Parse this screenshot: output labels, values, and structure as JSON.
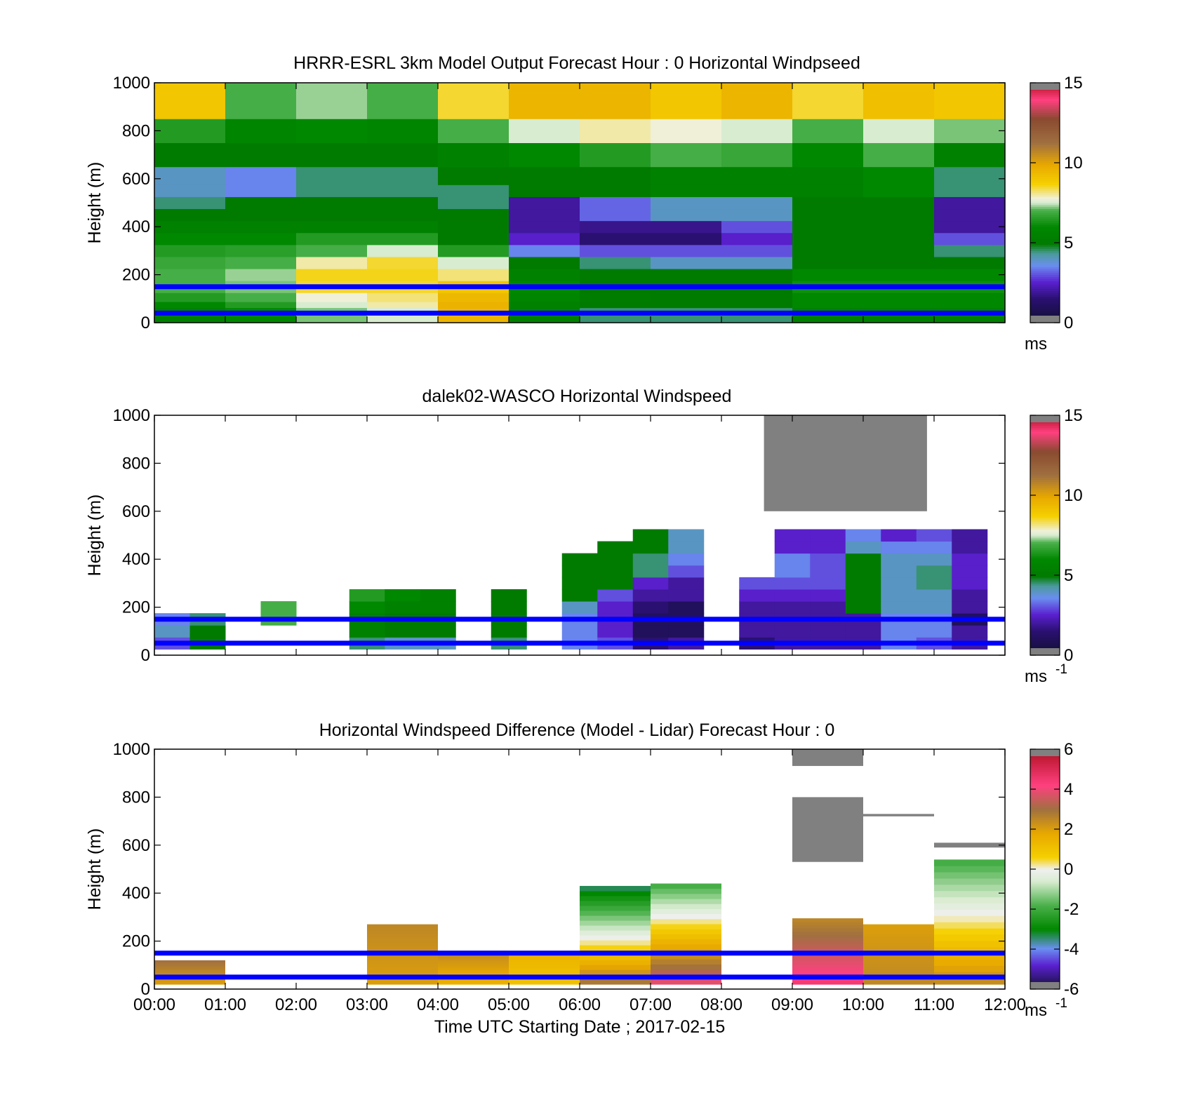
{
  "charts": [
    {
      "type": "heatmap",
      "title": "HRRR-ESRL 3km Model Output   Forecast Hour : 0 Horizontal Windpseed",
      "ylabel": "Height (m)",
      "xlabel": "",
      "yticks": [
        "0",
        "200",
        "400",
        "600",
        "800",
        "1000"
      ],
      "xticks": [],
      "ylim": [
        0,
        1000
      ],
      "xlim_hours": [
        0,
        12
      ],
      "colorbar": {
        "unit": "ms",
        "unit_exp": "",
        "ticks": [
          "0",
          "5",
          "10",
          "15"
        ],
        "min": 0,
        "max": 15
      }
    },
    {
      "type": "heatmap",
      "title": "dalek02-WASCO  Horizontal Windspeed",
      "ylabel": "Height (m)",
      "xlabel": "",
      "yticks": [
        "0",
        "200",
        "400",
        "600",
        "800",
        "1000"
      ],
      "xticks": [],
      "ylim": [
        0,
        1000
      ],
      "xlim_hours": [
        0,
        12
      ],
      "colorbar": {
        "unit": "ms",
        "unit_exp": "-1",
        "ticks": [
          "0",
          "5",
          "10",
          "15"
        ],
        "min": 0,
        "max": 15
      }
    },
    {
      "type": "heatmap",
      "title": "Horizontal Windspeed Difference (Model - Lidar) Forecast Hour : 0",
      "ylabel": "Height (m)",
      "xlabel": "Time UTC  Starting Date ; 2017-02-15",
      "yticks": [
        "0",
        "200",
        "400",
        "600",
        "800",
        "1000"
      ],
      "xticks": [
        "00:00",
        "01:00",
        "02:00",
        "03:00",
        "04:00",
        "05:00",
        "06:00",
        "07:00",
        "08:00",
        "09:00",
        "10:00",
        "11:00",
        "12:00"
      ],
      "ylim": [
        0,
        1000
      ],
      "xlim_hours": [
        0,
        12
      ],
      "colorbar": {
        "unit": "ms",
        "unit_exp": "-1",
        "ticks": [
          "-6",
          "-4",
          "-2",
          "0",
          "2",
          "4",
          "6"
        ],
        "min": -6,
        "max": 6
      }
    }
  ],
  "chart_data": [
    {
      "type": "heatmap",
      "x_hours": [
        0,
        1,
        2,
        3,
        4,
        5,
        6,
        7,
        8,
        9,
        10,
        11
      ],
      "y_height_m": [
        50,
        75,
        100,
        150,
        200,
        250,
        300,
        350,
        400,
        450,
        500,
        550,
        600,
        700,
        800,
        900
      ],
      "z_ms": [
        [
          5.5,
          6.0,
          7.2,
          7.5,
          9.5,
          5.5,
          4.5,
          4.5,
          4.5,
          5.5,
          5.5,
          5.5
        ],
        [
          6.0,
          6.5,
          7.5,
          8.0,
          9.6,
          5.5,
          5.0,
          5.0,
          5.0,
          6.0,
          6.0,
          6.0
        ],
        [
          6.5,
          7.0,
          7.8,
          8.2,
          9.4,
          5.8,
          5.2,
          5.0,
          5.0,
          6.0,
          6.0,
          6.0
        ],
        [
          7.0,
          7.2,
          8.5,
          8.5,
          9.0,
          6.0,
          5.0,
          5.0,
          5.0,
          6.2,
          6.2,
          6.2
        ],
        [
          7.0,
          7.3,
          8.6,
          8.6,
          8.2,
          5.5,
          5.0,
          5.0,
          5.0,
          6.0,
          6.0,
          6.0
        ],
        [
          6.8,
          7.0,
          8.0,
          8.5,
          7.5,
          5.0,
          4.5,
          4.0,
          4.0,
          5.0,
          5.0,
          5.0
        ],
        [
          6.5,
          6.6,
          7.0,
          7.5,
          6.5,
          3.5,
          3.0,
          3.0,
          3.0,
          5.0,
          5.0,
          4.5
        ],
        [
          6.0,
          6.0,
          6.5,
          6.5,
          5.0,
          2.5,
          1.5,
          1.5,
          2.5,
          5.0,
          5.0,
          3.0
        ],
        [
          5.5,
          5.5,
          5.5,
          5.5,
          5.0,
          2.0,
          1.8,
          1.8,
          3.0,
          5.0,
          5.0,
          2.0
        ],
        [
          5.0,
          5.0,
          5.0,
          5.0,
          5.0,
          2.0,
          3.2,
          4.0,
          4.0,
          5.0,
          5.0,
          2.0
        ],
        [
          4.5,
          5.0,
          5.0,
          5.0,
          4.5,
          2.0,
          3.2,
          4.0,
          4.0,
          5.0,
          5.0,
          2.0
        ],
        [
          4.0,
          3.5,
          4.5,
          4.5,
          4.5,
          5.0,
          5.0,
          5.5,
          5.5,
          5.5,
          6.0,
          4.5
        ],
        [
          4.0,
          3.5,
          4.5,
          4.5,
          5.0,
          5.0,
          5.0,
          5.5,
          5.5,
          5.5,
          6.0,
          4.5
        ],
        [
          5.0,
          5.0,
          5.0,
          5.0,
          5.5,
          6.0,
          6.5,
          7.0,
          6.8,
          6.0,
          7.0,
          5.5
        ],
        [
          6.5,
          5.8,
          6.0,
          5.8,
          7.0,
          7.5,
          8.0,
          7.8,
          7.5,
          7.0,
          7.5,
          7.2
        ],
        [
          9.0,
          7.0,
          7.3,
          7.0,
          8.5,
          9.5,
          9.5,
          9.0,
          9.5,
          8.5,
          9.2,
          9.0
        ]
      ],
      "overlay_lines_height_m": [
        40,
        150
      ]
    },
    {
      "type": "heatmap",
      "x_hours": [
        0.25,
        0.75,
        1.75,
        3.0,
        3.5,
        4.0,
        5.0,
        6.0,
        6.5,
        7.0,
        7.5,
        8.5,
        9.0,
        9.5,
        10.0,
        10.5,
        11.0,
        11.5
      ],
      "y_height_m": [
        50,
        100,
        150,
        200,
        250,
        300,
        350,
        400,
        450,
        500
      ],
      "z_ms": [
        [
          3.0,
          5.0,
          null,
          4.5,
          4.0,
          4.0,
          4.5,
          3.5,
          3.0,
          1.5,
          2.0,
          1.5,
          2.0,
          2.0,
          2.0,
          3.5,
          3.0,
          2.0
        ],
        [
          4.0,
          5.0,
          null,
          5.5,
          5.0,
          5.0,
          5.0,
          3.5,
          2.5,
          1.0,
          1.0,
          2.0,
          2.0,
          2.0,
          2.0,
          3.5,
          3.5,
          2.0
        ],
        [
          3.5,
          4.5,
          7.0,
          5.5,
          5.0,
          5.0,
          5.0,
          3.5,
          2.5,
          1.0,
          1.0,
          2.0,
          2.0,
          2.0,
          2.0,
          3.5,
          3.5,
          1.0
        ],
        [
          null,
          null,
          7.0,
          6.0,
          5.5,
          5.5,
          5.0,
          4.0,
          2.5,
          1.5,
          1.0,
          2.0,
          2.0,
          2.0,
          5.0,
          4.0,
          4.0,
          2.0
        ],
        [
          null,
          null,
          null,
          6.5,
          6.0,
          5.5,
          5.0,
          5.0,
          3.0,
          2.0,
          2.0,
          2.5,
          2.5,
          2.5,
          5.0,
          4.0,
          4.0,
          2.0
        ],
        [
          null,
          null,
          null,
          null,
          null,
          null,
          null,
          5.0,
          5.0,
          2.5,
          2.0,
          3.0,
          3.0,
          3.0,
          5.0,
          4.0,
          4.5,
          2.5
        ],
        [
          null,
          null,
          null,
          null,
          null,
          null,
          null,
          5.0,
          5.0,
          4.5,
          3.0,
          null,
          3.5,
          3.0,
          5.0,
          4.0,
          4.5,
          2.5
        ],
        [
          null,
          null,
          null,
          null,
          null,
          null,
          null,
          5.0,
          5.0,
          4.5,
          3.5,
          null,
          3.5,
          3.0,
          5.0,
          4.0,
          4.0,
          2.5
        ],
        [
          null,
          null,
          null,
          null,
          null,
          null,
          null,
          null,
          5.0,
          5.0,
          4.0,
          null,
          2.5,
          2.5,
          4.0,
          3.5,
          3.5,
          2.0
        ],
        [
          null,
          null,
          null,
          null,
          null,
          null,
          null,
          null,
          null,
          5.0,
          4.0,
          null,
          2.5,
          2.5,
          3.5,
          2.5,
          3.0,
          2.0
        ]
      ],
      "missing_data_above_m": [
        500,
        1000
      ],
      "overlay_lines_height_m": [
        50,
        150
      ]
    },
    {
      "type": "heatmap",
      "x_hours": [
        0,
        3,
        4,
        5,
        6,
        7,
        9,
        10,
        11
      ],
      "segments": [
        {
          "x_hours": [
            0,
            1
          ],
          "y_height_m": [
            20,
            120
          ],
          "z_ms": [
            2.0,
            3.0
          ]
        },
        {
          "x_hours": [
            3,
            4
          ],
          "y_height_m": [
            20,
            270
          ],
          "z_ms": [
            2.0,
            2.5
          ]
        },
        {
          "x_hours": [
            4,
            5
          ],
          "y_height_m": [
            20,
            160
          ],
          "z_ms": [
            1.5,
            2.5
          ]
        },
        {
          "x_hours": [
            5,
            6
          ],
          "y_height_m": [
            20,
            160
          ],
          "z_ms": [
            1.0,
            1.5
          ]
        },
        {
          "x_hours": [
            6,
            7
          ],
          "y_height_m": [
            20,
            430
          ],
          "z_ms": [
            3.0,
            -3.5
          ]
        },
        {
          "x_hours": [
            7,
            8
          ],
          "y_height_m": [
            20,
            440
          ],
          "z_ms": [
            4.0,
            -2.0
          ]
        },
        {
          "x_hours": [
            9,
            10
          ],
          "y_height_m": [
            20,
            295
          ],
          "z_ms": [
            4.5,
            2.5
          ]
        },
        {
          "x_hours": [
            10,
            11
          ],
          "y_height_m": [
            20,
            270
          ],
          "z_ms": [
            2.5,
            2.0
          ]
        },
        {
          "x_hours": [
            11,
            12
          ],
          "y_height_m": [
            20,
            540
          ],
          "z_ms": [
            2.5,
            -2.0
          ]
        }
      ],
      "below_min_regions": [
        {
          "x_hours": [
            9,
            10
          ],
          "y_height_m": [
            930,
            1000
          ]
        },
        {
          "x_hours": [
            9,
            10
          ],
          "y_height_m": [
            530,
            800
          ]
        },
        {
          "x_hours": [
            11,
            12
          ],
          "y_height_m": [
            590,
            610
          ]
        },
        {
          "x_hours": [
            10,
            11
          ],
          "y_height_m": [
            720,
            730
          ]
        }
      ],
      "overlay_lines_height_m": [
        50,
        150
      ]
    }
  ],
  "colormaps": {
    "speed": [
      [
        0.0,
        "#101030"
      ],
      [
        0.1,
        "#2a1070"
      ],
      [
        0.17,
        "#5a20d0"
      ],
      [
        0.24,
        "#6a8ff0"
      ],
      [
        0.29,
        "#4a9a9a"
      ],
      [
        0.33,
        "#007a00"
      ],
      [
        0.4,
        "#008800"
      ],
      [
        0.47,
        "#4ab04a"
      ],
      [
        0.5,
        "#d8ecd0"
      ],
      [
        0.52,
        "#f0f0d8"
      ],
      [
        0.58,
        "#f5d000"
      ],
      [
        0.66,
        "#e8a800"
      ],
      [
        0.75,
        "#a07040"
      ],
      [
        0.85,
        "#8a4a30"
      ],
      [
        0.93,
        "#ff4080"
      ],
      [
        1.0,
        "#b01020"
      ]
    ],
    "diff": [
      [
        0.0,
        "#101030"
      ],
      [
        0.1,
        "#5a20d0"
      ],
      [
        0.17,
        "#6a8ff0"
      ],
      [
        0.25,
        "#008800"
      ],
      [
        0.35,
        "#4ab04a"
      ],
      [
        0.45,
        "#d8ecd0"
      ],
      [
        0.5,
        "#f0f0f0"
      ],
      [
        0.55,
        "#f5d000"
      ],
      [
        0.65,
        "#e8a800"
      ],
      [
        0.75,
        "#a07040"
      ],
      [
        0.85,
        "#ff4080"
      ],
      [
        1.0,
        "#b01020"
      ]
    ],
    "below_min_color": "#808080",
    "above_max_color": "#808080",
    "overlay_line_color": "#0000ff"
  }
}
